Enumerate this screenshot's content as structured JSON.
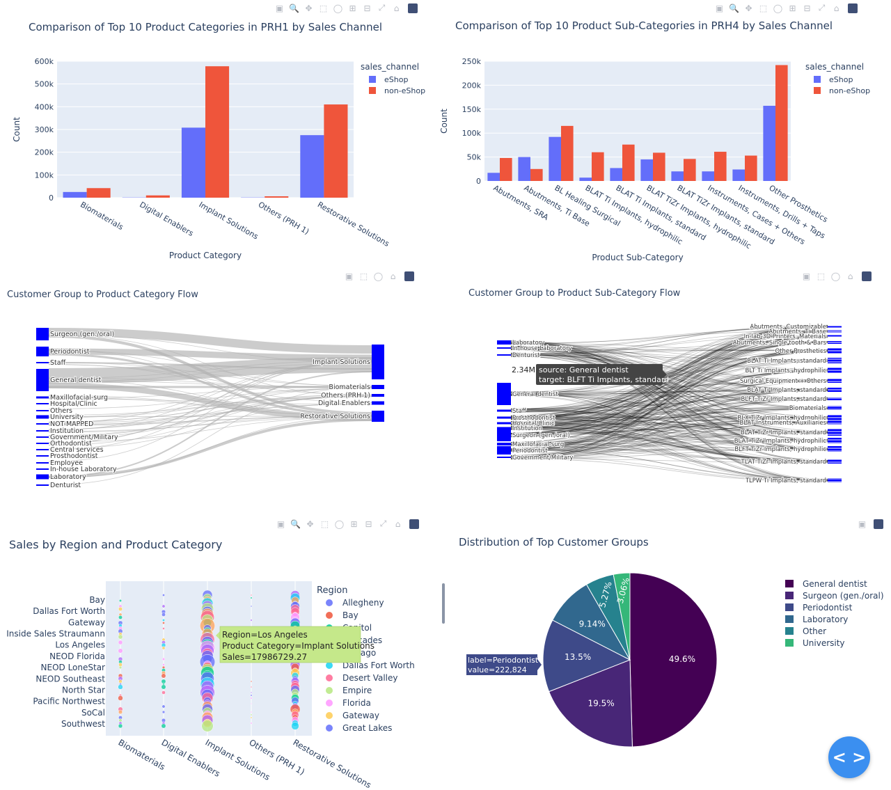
{
  "colors": {
    "eshop": "#636efa",
    "noneshop": "#ef553b",
    "plot_bg": "#e5ecf6",
    "sankey_node": "#0000ff",
    "link": "#b0b0b0",
    "text": "#2a3f5f",
    "tooltip_green": "#c5e88a",
    "pie_slices": [
      "#440154",
      "#482677",
      "#3e4a89",
      "#31688e",
      "#26828e",
      "#35b779"
    ]
  },
  "modebar_icons": [
    "camera-icon",
    "zoom-icon",
    "pan-icon",
    "box-select-icon",
    "lasso-icon",
    "zoom-in-icon",
    "zoom-out-icon",
    "autoscale-icon",
    "home-icon",
    "plotly-logo-icon"
  ],
  "fab": {
    "icon": "code-icon",
    "label": "< >"
  },
  "chart_data": [
    {
      "type": "bar",
      "title": "Comparison of Top 10 Product Categories in PRH1 by Sales Channel",
      "xlabel": "Product Category",
      "ylabel": "Count",
      "ylim": [
        0,
        600000
      ],
      "yticks": [
        "0",
        "100k",
        "200k",
        "300k",
        "400k",
        "500k",
        "600k"
      ],
      "legend_title": "sales_channel",
      "legend_position": "top-right",
      "categories": [
        "Biomaterials",
        "Digital Enablers",
        "Implant Solutions",
        "Others (PRH 1)",
        "Restorative Solutions"
      ],
      "series": [
        {
          "name": "eShop",
          "values": [
            25000,
            1000,
            308000,
            1000,
            275000
          ]
        },
        {
          "name": "non-eShop",
          "values": [
            42000,
            10000,
            578000,
            6000,
            410000
          ]
        }
      ]
    },
    {
      "type": "bar",
      "title": "Comparison of Top 10 Product Sub-Categories in PRH4 by Sales Channel",
      "xlabel": "Product Sub-Category",
      "ylabel": "Count",
      "ylim": [
        0,
        250000
      ],
      "yticks": [
        "0",
        "50k",
        "100k",
        "150k",
        "200k",
        "250k"
      ],
      "legend_title": "sales_channel",
      "legend_position": "top-right",
      "categories": [
        "Abutments, SRA",
        "Abutments, Ti Base",
        "BL Healing Surgical",
        "BLAT Ti Implants, hydrophilic",
        "BLAT Ti Implants, standard",
        "BLAT TiZr Implants, hydrophilic",
        "BLAT TiZr Implants, standard",
        "Instruments, Cases + Others",
        "Instruments, Drills + Taps",
        "Other Prosthetics"
      ],
      "series": [
        {
          "name": "eShop",
          "values": [
            17000,
            50000,
            92000,
            7000,
            27000,
            45000,
            20000,
            20000,
            24000,
            157000
          ]
        },
        {
          "name": "non-eShop",
          "values": [
            48000,
            25000,
            115000,
            60000,
            76000,
            59000,
            46000,
            61000,
            53000,
            242000
          ]
        }
      ]
    },
    {
      "type": "sankey",
      "title": "Customer Group to Product Category Flow",
      "sources": [
        "Surgeon (gen./oral)",
        "Periodontist",
        "Staff",
        "General dentist",
        "Maxillofacial-surg",
        "Hospital/Clinic",
        "Others",
        "University",
        "NOT-MAPPED",
        "Institution",
        "Government/Military",
        "Orthodontist",
        "Central services",
        "Prosthodontist",
        "Employee",
        "In-house Laboratory",
        "Laboratory",
        "Denturist"
      ],
      "targets": [
        "Implant Solutions",
        "Biomaterials",
        "Others (PRH 1)",
        "Digital Enablers",
        "Restorative Solutions"
      ]
    },
    {
      "type": "sankey",
      "title": "Customer Group to Product Sub-Category Flow",
      "sources": [
        "Laboratory",
        "In-house Laboratory",
        "Denturist",
        "General dentist",
        "Staff",
        "Prosthodontist",
        "Hospital/Clinic",
        "Institution",
        "Surgeon (gen./oral)",
        "Maxillofacial-surg",
        "Periodontist",
        "Government/Military"
      ],
      "targets": [
        "Abutments, Customizable",
        "Abutments, Ti Base",
        "In-lab 3D Printers, Materials",
        "Abutments, Single tooth & Bars",
        "Other Prosthetics",
        "BLAT Ti Implants, standard",
        "BLT Ti Implants, hydrophilic",
        "Surgical Equipment + Others",
        "BLAT Ti Implants, standard",
        "BLFT TiZr Implants, standard",
        "Biomaterials",
        "BLX TiZr Implants, hydrophilic",
        "BLAT Instruments, Auxiliaries",
        "BLAT TiZr Implants, standard",
        "BLAT TiZr Implants, hydrophilic",
        "BLFT TiZr Implants, hydrophilic",
        "TLAT TiZr Implants, standard",
        "TLPW Ti Implants, standard"
      ],
      "tooltip": {
        "value": "2.34M",
        "source": "source: General dentist",
        "target": "target: BLFT Ti Implants, standard"
      }
    },
    {
      "type": "scatter",
      "title": "Sales by Region and Product Category",
      "legend_title": "Region",
      "legend_position": "right",
      "categories": [
        "Biomaterials",
        "Digital Enablers",
        "Implant Solutions",
        "Others (PRH 1)",
        "Restorative Solutions"
      ],
      "y_labels": [
        "Bay",
        "Dallas Fort Worth",
        "Gateway",
        "Inside Sales Straumann",
        "Los Angeles",
        "NEOD Florida",
        "NEOD LoneStar",
        "NEOD Southeast",
        "North Star",
        "Pacific Northwest",
        "SoCal",
        "Southwest"
      ],
      "legend": [
        {
          "name": "Allegheny",
          "color": "#636efa"
        },
        {
          "name": "Bay",
          "color": "#ef553b"
        },
        {
          "name": "Capitol",
          "color": "#00cc96"
        },
        {
          "name": "Cascades",
          "color": "#ab63fa"
        },
        {
          "name": "Chicago",
          "color": "#ffa15a"
        },
        {
          "name": "Dallas Fort Worth",
          "color": "#19d3f3"
        },
        {
          "name": "Desert Valley",
          "color": "#ff6692"
        },
        {
          "name": "Empire",
          "color": "#b6e880"
        },
        {
          "name": "Florida",
          "color": "#ff97ff"
        },
        {
          "name": "Gateway",
          "color": "#fecb52"
        },
        {
          "name": "Great Lakes",
          "color": "#636efa"
        }
      ],
      "tooltip": {
        "line1": "Region=Los Angeles",
        "line2": "Product Category=Implant Solutions",
        "line3": "Sales=17986729.27"
      }
    },
    {
      "type": "pie",
      "title": "Distribution of Top Customer Groups",
      "legend_position": "right",
      "slices": [
        {
          "label": "General dentist",
          "value": 49.6,
          "text": "49.6%"
        },
        {
          "label": "Surgeon (gen./oral)",
          "value": 19.5,
          "text": "19.5%"
        },
        {
          "label": "Periodontist",
          "value": 13.5,
          "text": "13.5%"
        },
        {
          "label": "Laboratory",
          "value": 9.14,
          "text": "9.14%"
        },
        {
          "label": "Other",
          "value": 5.27,
          "text": "5.27%"
        },
        {
          "label": "University",
          "value": 3.06,
          "text": "3.06%"
        }
      ],
      "tooltip": {
        "line1": "label=Periodontist",
        "line2": "value=222,824"
      }
    }
  ]
}
